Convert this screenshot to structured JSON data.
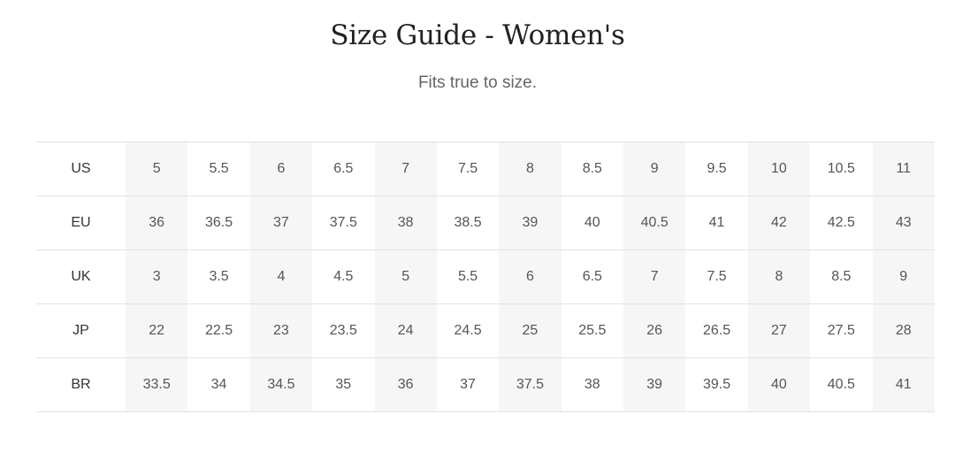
{
  "title": "Size Guide - Women's",
  "subtitle": "Fits true to size.",
  "table": {
    "rows": [
      {
        "label": "US",
        "values": [
          "5",
          "5.5",
          "6",
          "6.5",
          "7",
          "7.5",
          "8",
          "8.5",
          "9",
          "9.5",
          "10",
          "10.5",
          "11"
        ]
      },
      {
        "label": "EU",
        "values": [
          "36",
          "36.5",
          "37",
          "37.5",
          "38",
          "38.5",
          "39",
          "40",
          "40.5",
          "41",
          "42",
          "42.5",
          "43"
        ]
      },
      {
        "label": "UK",
        "values": [
          "3",
          "3.5",
          "4",
          "4.5",
          "5",
          "5.5",
          "6",
          "6.5",
          "7",
          "7.5",
          "8",
          "8.5",
          "9"
        ]
      },
      {
        "label": "JP",
        "values": [
          "22",
          "22.5",
          "23",
          "23.5",
          "24",
          "24.5",
          "25",
          "25.5",
          "26",
          "26.5",
          "27",
          "27.5",
          "28"
        ]
      },
      {
        "label": "BR",
        "values": [
          "33.5",
          "34",
          "34.5",
          "35",
          "36",
          "37",
          "37.5",
          "38",
          "39",
          "39.5",
          "40",
          "40.5",
          "41"
        ]
      }
    ]
  },
  "colors": {
    "shaded_column": "#f6f6f6",
    "border": "#e2e2e2"
  }
}
